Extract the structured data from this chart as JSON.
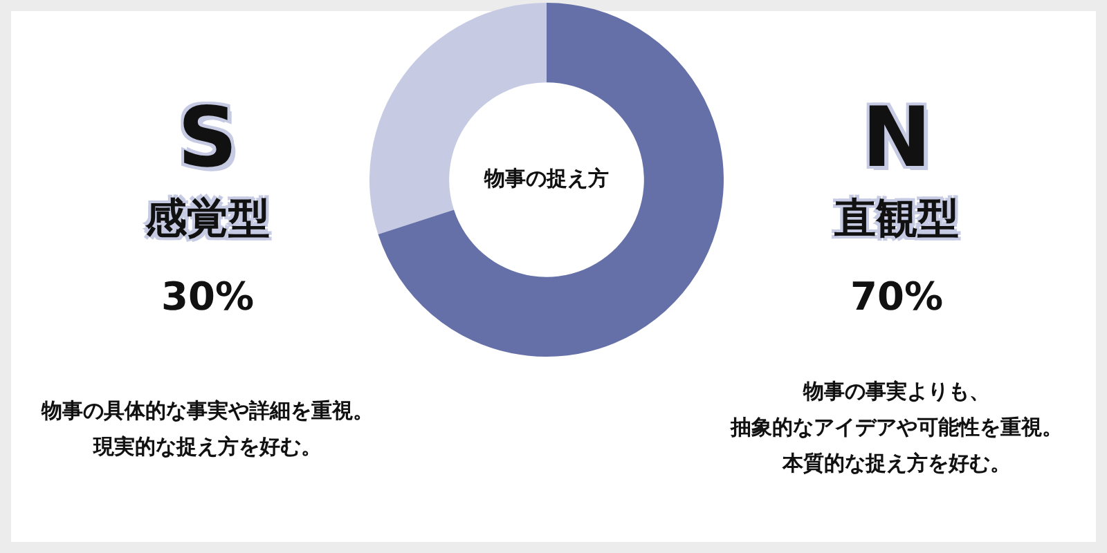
{
  "chart_data": {
    "type": "donut",
    "title": "物事の捉え方",
    "categories": [
      "感覚型",
      "直観型"
    ],
    "values": [
      30,
      70
    ],
    "value_labels": [
      "30%",
      "70%"
    ],
    "colors": [
      "#c6cbe3",
      "#6670a8"
    ],
    "legend": false,
    "annotations": [
      "S",
      "N",
      "物事の具体的な事実や詳細を重視。",
      "現実的な捉え方を好む。",
      "物事の事実よりも、",
      "抽象的なアイデアや可能性を重視。",
      "本質的な捉え方を好む。"
    ]
  }
}
